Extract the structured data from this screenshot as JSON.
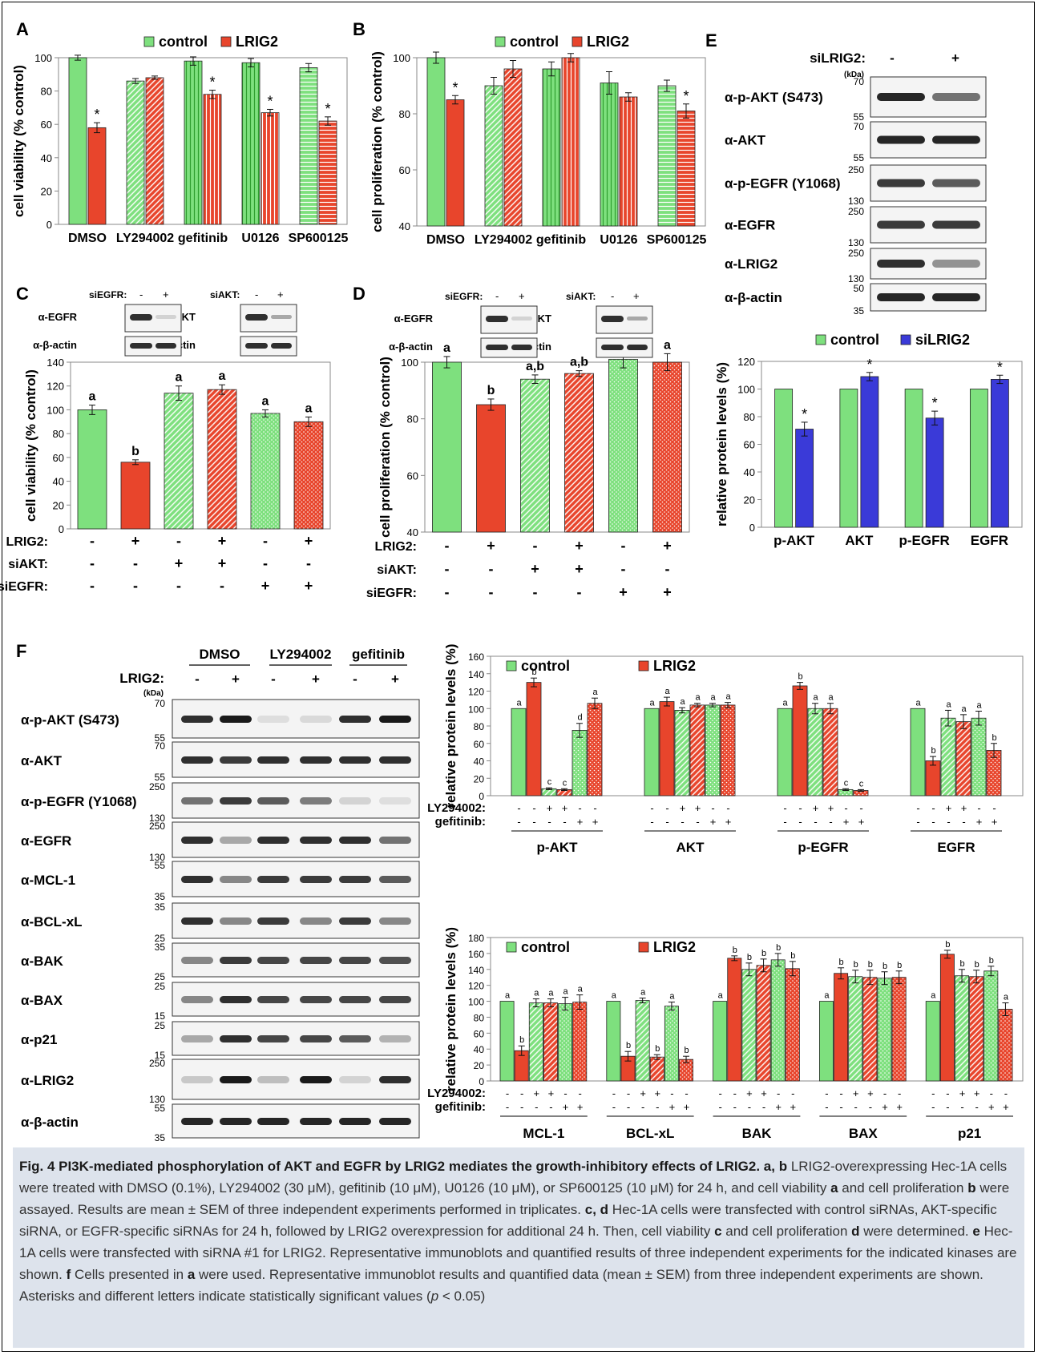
{
  "colors": {
    "green": "#7ee07e",
    "red": "#e8452c",
    "blue": "#3a3ad8",
    "blot_bg": "#f4f4f4",
    "band": "#1a1a1a"
  },
  "legend": {
    "control": "control",
    "lrig2": "LRIG2",
    "silrig2": "siLRIG2"
  },
  "panels": {
    "a": "A",
    "b": "B",
    "c": "C",
    "d": "D",
    "e": "E",
    "f": "F"
  },
  "chart_data": [
    {
      "panel": "A",
      "type": "bar",
      "ylabel": "cell viability (% control)",
      "ylim": [
        0,
        100
      ],
      "yticks": [
        0,
        20,
        40,
        60,
        80,
        100
      ],
      "categories": [
        "DMSO",
        "LY294002",
        "gefitinib",
        "U0126",
        "SP600125"
      ],
      "series": [
        {
          "name": "control",
          "values": [
            100,
            86,
            98,
            97,
            94
          ],
          "err": [
            1.5,
            1.5,
            2.5,
            2.5,
            2.5
          ]
        },
        {
          "name": "LRIG2",
          "values": [
            58,
            88,
            78,
            67,
            62
          ],
          "err": [
            3,
            1,
            2.5,
            2,
            2.5
          ]
        }
      ],
      "annotations": [
        "",
        "*",
        "",
        "",
        "",
        "*",
        "",
        "*",
        "",
        "*"
      ]
    },
    {
      "panel": "B",
      "type": "bar",
      "ylabel": "cell proliferation (% control)",
      "ylim": [
        40,
        100
      ],
      "yticks": [
        40,
        60,
        80,
        100
      ],
      "categories": [
        "DMSO",
        "LY294002",
        "gefitinib",
        "U0126",
        "SP600125"
      ],
      "series": [
        {
          "name": "control",
          "values": [
            100,
            90,
            96,
            91,
            90
          ],
          "err": [
            2,
            3,
            2.5,
            4,
            2
          ]
        },
        {
          "name": "LRIG2",
          "values": [
            85,
            96,
            100,
            86,
            81
          ],
          "err": [
            1.5,
            3,
            1.5,
            1.5,
            2.5
          ]
        }
      ],
      "annotations": [
        "",
        "*",
        "",
        "",
        "",
        "",
        "",
        "",
        "",
        "*"
      ]
    },
    {
      "panel": "C",
      "type": "bar",
      "ylabel": "cell viability (% control)",
      "ylim": [
        0,
        140
      ],
      "yticks": [
        0,
        20,
        40,
        60,
        80,
        100,
        120,
        140
      ],
      "categories": [
        "1",
        "2",
        "3",
        "4",
        "5",
        "6"
      ],
      "values": [
        100,
        56,
        114,
        117,
        97,
        90
      ],
      "err": [
        4,
        2,
        6,
        4,
        3,
        4
      ],
      "letters": [
        "a",
        "b",
        "a",
        "a",
        "a",
        "a"
      ],
      "rows": [
        {
          "label": "LRIG2:",
          "signs": [
            "-",
            "+",
            "-",
            "+",
            "-",
            "+"
          ]
        },
        {
          "label": "siAKT:",
          "signs": [
            "-",
            "-",
            "+",
            "+",
            "-",
            "-"
          ]
        },
        {
          "label": "siEGFR:",
          "signs": [
            "-",
            "-",
            "-",
            "-",
            "+",
            "+"
          ]
        }
      ]
    },
    {
      "panel": "D",
      "type": "bar",
      "ylabel": "cell proliferation (% control)",
      "ylim": [
        40,
        100
      ],
      "yticks": [
        40,
        60,
        80,
        100
      ],
      "categories": [
        "1",
        "2",
        "3",
        "4",
        "5",
        "6"
      ],
      "values": [
        100,
        85,
        94,
        96,
        101,
        100
      ],
      "err": [
        2,
        2,
        1.5,
        1,
        3,
        3
      ],
      "letters": [
        "a",
        "b",
        "a,b",
        "a,b",
        "a",
        "a"
      ],
      "rows": [
        {
          "label": "LRIG2:",
          "signs": [
            "-",
            "+",
            "-",
            "+",
            "-",
            "+"
          ]
        },
        {
          "label": "siAKT:",
          "signs": [
            "-",
            "-",
            "+",
            "+",
            "-",
            "-"
          ]
        },
        {
          "label": "siEGFR:",
          "signs": [
            "-",
            "-",
            "-",
            "-",
            "+",
            "+"
          ]
        }
      ]
    },
    {
      "panel": "E",
      "type": "bar",
      "ylabel": "relative protein levels  (%)",
      "ylim": [
        0,
        120
      ],
      "yticks": [
        0,
        20,
        40,
        60,
        80,
        100,
        120
      ],
      "categories": [
        "p-AKT",
        "AKT",
        "p-EGFR",
        "EGFR"
      ],
      "series": [
        {
          "name": "control",
          "values": [
            100,
            100,
            100,
            100
          ]
        },
        {
          "name": "siLRIG2",
          "values": [
            71,
            109,
            79,
            107
          ],
          "err": [
            5,
            3,
            5,
            3
          ]
        }
      ],
      "annotations": [
        "",
        "*",
        "",
        "*",
        "",
        "*",
        "",
        "*"
      ]
    },
    {
      "panel": "F-top",
      "type": "bar",
      "ylabel": "relative protein levels  (%)",
      "ylim": [
        0,
        160
      ],
      "yticks": [
        0,
        20,
        40,
        60,
        80,
        100,
        120,
        140,
        160
      ],
      "categories": [
        "p-AKT",
        "AKT",
        "p-EGFR",
        "EGFR"
      ],
      "values": [
        [
          100,
          130,
          8,
          7,
          75,
          106
        ],
        [
          100,
          108,
          98,
          104,
          104,
          104
        ],
        [
          100,
          126,
          100,
          100,
          7,
          6
        ],
        [
          100,
          40,
          89,
          85,
          89,
          52
        ]
      ],
      "err": [
        [
          0,
          5,
          1,
          1,
          8,
          6
        ],
        [
          0,
          5,
          3,
          2,
          2,
          3
        ],
        [
          0,
          4,
          6,
          6,
          1,
          1
        ],
        [
          0,
          5,
          9,
          8,
          8,
          8
        ]
      ],
      "letters": [
        [
          "a",
          "b",
          "c",
          "c",
          "d",
          "a"
        ],
        [
          "a",
          "a",
          "a",
          "a",
          "a",
          "a"
        ],
        [
          "a",
          "b",
          "a",
          "a",
          "c",
          "c"
        ],
        [
          "a",
          "b",
          "a",
          "a",
          "a",
          "b"
        ]
      ],
      "ly294002": [
        "-",
        "-",
        "+",
        "+",
        "-",
        "-"
      ],
      "gefitinib": [
        "-",
        "-",
        "-",
        "-",
        "+",
        "+"
      ]
    },
    {
      "panel": "F-bottom",
      "type": "bar",
      "ylabel": "relative protein levels  (%)",
      "ylim": [
        0,
        180
      ],
      "yticks": [
        0,
        20,
        40,
        60,
        80,
        100,
        120,
        140,
        160,
        180
      ],
      "categories": [
        "MCL-1",
        "BCL-xL",
        "BAK",
        "BAX",
        "p21"
      ],
      "values": [
        [
          100,
          38,
          98,
          98,
          97,
          99
        ],
        [
          100,
          31,
          101,
          30,
          94,
          27
        ],
        [
          100,
          154,
          140,
          145,
          152,
          141
        ],
        [
          100,
          135,
          131,
          130,
          129,
          130
        ],
        [
          100,
          159,
          132,
          131,
          138,
          90
        ]
      ],
      "err": [
        [
          0,
          6,
          5,
          5,
          8,
          9
        ],
        [
          0,
          6,
          3,
          3,
          5,
          4
        ],
        [
          0,
          3,
          8,
          8,
          8,
          9
        ],
        [
          0,
          7,
          8,
          9,
          8,
          8
        ],
        [
          0,
          5,
          8,
          8,
          6,
          8
        ]
      ],
      "letters": [
        [
          "a",
          "b",
          "a",
          "a",
          "a",
          "a"
        ],
        [
          "a",
          "b",
          "a",
          "b",
          "a",
          "b"
        ],
        [
          "a",
          "b",
          "b",
          "b",
          "b",
          "b"
        ],
        [
          "a",
          "b",
          "b",
          "b",
          "b",
          "b"
        ],
        [
          "a",
          "b",
          "b",
          "b",
          "b",
          "a"
        ]
      ],
      "ly294002": [
        "-",
        "-",
        "+",
        "+",
        "-",
        "-"
      ],
      "gefitinib": [
        "-",
        "-",
        "-",
        "-",
        "+",
        "+"
      ]
    }
  ],
  "blots_c": {
    "siegfr": "siEGFR:",
    "siakt": "siAKT:",
    "egfr": "α-EGFR",
    "akt": "α-AKT",
    "actin": "α-β-actin",
    "minus": "-",
    "plus": "+"
  },
  "blots_e": {
    "header": "siLRIG2:",
    "minus": "-",
    "plus": "+",
    "kda": "(kDa)",
    "rows": [
      {
        "label": "α-p-AKT (S473)",
        "top": "70",
        "bottom": "55"
      },
      {
        "label": "α-AKT",
        "top": "70",
        "bottom": "55"
      },
      {
        "label": "α-p-EGFR (Y1068)",
        "top": "250",
        "bottom": "130"
      },
      {
        "label": "α-EGFR",
        "top": "250",
        "bottom": "130"
      },
      {
        "label": "α-LRIG2",
        "top": "250",
        "bottom": "130"
      },
      {
        "label": "α-β-actin",
        "top": "50",
        "bottom": "35"
      }
    ]
  },
  "blots_f": {
    "groups": [
      "DMSO",
      "LY294002",
      "gefitinib"
    ],
    "lrig2": "LRIG2:",
    "signs": [
      "-",
      "+",
      "-",
      "+",
      "-",
      "+"
    ],
    "kda": "(kDa)",
    "rows": [
      {
        "label": "α-p-AKT (S473)",
        "top": "70",
        "bottom": "55"
      },
      {
        "label": "α-AKT",
        "top": "70",
        "bottom": "55"
      },
      {
        "label": "α-p-EGFR (Y1068)",
        "top": "250",
        "bottom": "130"
      },
      {
        "label": "α-EGFR",
        "top": "250",
        "bottom": "130"
      },
      {
        "label": "α-MCL-1",
        "top": "55",
        "bottom": "35"
      },
      {
        "label": "α-BCL-xL",
        "top": "35",
        "bottom": "25"
      },
      {
        "label": "α-BAK",
        "top": "35",
        "bottom": "25"
      },
      {
        "label": "α-BAX",
        "top": "25",
        "bottom": "15"
      },
      {
        "label": "α-p21",
        "top": "25",
        "bottom": "15"
      },
      {
        "label": "α-LRIG2",
        "top": "250",
        "bottom": "130"
      },
      {
        "label": "α-β-actin",
        "top": "55",
        "bottom": "35"
      }
    ]
  },
  "f_row_labels": {
    "ly": "LY294002:",
    "gef": "gefitinib:"
  },
  "caption": {
    "title": "Fig. 4 PI3K-mediated phosphorylation of AKT and EGFR by LRIG2 mediates the growth-inhibitory effects of LRIG2.",
    "t_ab": "a, b",
    "p1": "LRIG2-overexpressing Hec-1A cells were treated with DMSO (0.1%), LY294002 (30 μM), gefitinib (10 μM), U0126 (10 μM), or SP600125 (10 μM) for 24 h, and cell viability",
    "t_a": "a",
    "p2": "and cell proliferation",
    "t_b": "b",
    "p3": "were assayed. Results are mean ± SEM of three independent experiments performed in triplicates.",
    "t_cd": "c, d",
    "p4": "Hec-1A cells were transfected with control siRNAs, AKT-specific siRNA, or EGFR-specific siRNAs for 24 h, followed by LRIG2 overexpression for additional 24 h. Then, cell viability",
    "t_c": "c",
    "p5": "and cell proliferation",
    "t_d": "d",
    "p6": "were determined.",
    "t_e": "e",
    "p7": "Hec-1A cells were transfected with siRNA #1 for LRIG2. Representative immunoblots and quantified results of three independent experiments for the indicated kinases are shown.",
    "t_f": "f",
    "p8": "Cells presented in",
    "t_a2": "a",
    "p9": "were used. Representative immunoblot results and quantified data (mean ± SEM) from three independent experiments are shown. Asterisks and different letters indicate statistically significant values (",
    "p_italic": "p",
    "p10": "< 0.05)"
  }
}
